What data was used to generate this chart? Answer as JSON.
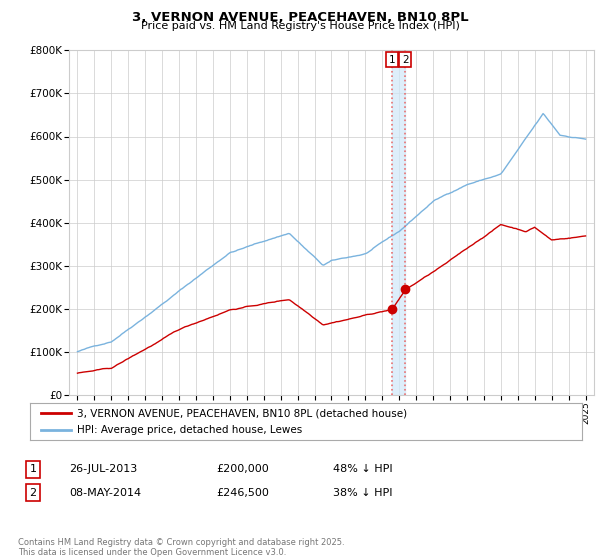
{
  "title": "3, VERNON AVENUE, PEACEHAVEN, BN10 8PL",
  "subtitle": "Price paid vs. HM Land Registry's House Price Index (HPI)",
  "ylim": [
    0,
    800000
  ],
  "yticks": [
    0,
    100000,
    200000,
    300000,
    400000,
    500000,
    600000,
    700000,
    800000
  ],
  "ytick_labels": [
    "£0",
    "£100K",
    "£200K",
    "£300K",
    "£400K",
    "£500K",
    "£600K",
    "£700K",
    "£800K"
  ],
  "hpi_color": "#7ab3de",
  "price_color": "#cc0000",
  "purchase1_date_num": 2013.57,
  "purchase1_price": 200000,
  "purchase2_date_num": 2014.36,
  "purchase2_price": 246500,
  "vline_color": "#e87070",
  "vband_color": "#d0e8f8",
  "legend_line1": "3, VERNON AVENUE, PEACEHAVEN, BN10 8PL (detached house)",
  "legend_line2": "HPI: Average price, detached house, Lewes",
  "transaction1_label": "1",
  "transaction1_date": "26-JUL-2013",
  "transaction1_price": "£200,000",
  "transaction1_hpi": "48% ↓ HPI",
  "transaction2_label": "2",
  "transaction2_date": "08-MAY-2014",
  "transaction2_price": "£246,500",
  "transaction2_hpi": "38% ↓ HPI",
  "footer": "Contains HM Land Registry data © Crown copyright and database right 2025.\nThis data is licensed under the Open Government Licence v3.0.",
  "bg_color": "#ffffff",
  "grid_color": "#cccccc"
}
